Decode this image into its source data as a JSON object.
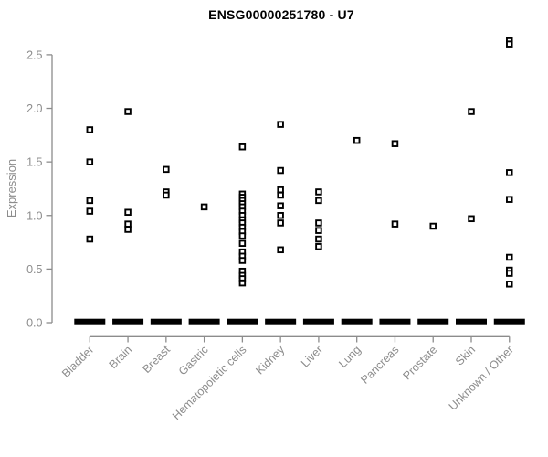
{
  "chart_data": {
    "type": "scatter",
    "title": "ENSG00000251780 - U7",
    "xlabel": "",
    "ylabel": "Expression",
    "ylim": [
      0,
      2.5
    ],
    "yticks": [
      0.0,
      0.5,
      1.0,
      1.5,
      2.0,
      2.5
    ],
    "ytick_labels": [
      "0.0",
      "0.5",
      "1.0",
      "1.5",
      "2.0",
      "2.5"
    ],
    "grid": "off",
    "legend": "none",
    "marker": "open-square",
    "categories": [
      "Bladder",
      "Brain",
      "Breast",
      "Gastric",
      "Hematopoietic cells",
      "Kidney",
      "Liver",
      "Lung",
      "Pancreas",
      "Prostate",
      "Skin",
      "Unknown / Other"
    ],
    "zero_cluster_note": "Every category shows a dense horizontal cluster of many overlapping points at expression 0, appearing as a thick black dash",
    "series": [
      {
        "category": "Bladder",
        "values": [
          1.8,
          1.5,
          1.14,
          1.04,
          0.78
        ],
        "zero_cluster": true
      },
      {
        "category": "Brain",
        "values": [
          1.97,
          1.03,
          0.92,
          0.87
        ],
        "zero_cluster": true
      },
      {
        "category": "Breast",
        "values": [
          1.43,
          1.22,
          1.19
        ],
        "zero_cluster": true
      },
      {
        "category": "Gastric",
        "values": [
          1.08
        ],
        "zero_cluster": true
      },
      {
        "category": "Hematopoietic cells",
        "values": [
          1.64,
          1.2,
          1.17,
          1.14,
          1.11,
          1.08,
          1.04,
          1.0,
          0.96,
          0.93,
          0.89,
          0.85,
          0.81,
          0.74,
          0.66,
          0.62,
          0.58,
          0.48,
          0.44,
          0.41,
          0.37
        ],
        "zero_cluster": true
      },
      {
        "category": "Kidney",
        "values": [
          1.85,
          1.42,
          1.24,
          1.19,
          1.09,
          1.0,
          0.93,
          0.68
        ],
        "zero_cluster": true
      },
      {
        "category": "Liver",
        "values": [
          1.22,
          1.14,
          0.93,
          0.86,
          0.78,
          0.71
        ],
        "zero_cluster": true
      },
      {
        "category": "Lung",
        "values": [
          1.7
        ],
        "zero_cluster": true
      },
      {
        "category": "Pancreas",
        "values": [
          1.67,
          0.92
        ],
        "zero_cluster": true
      },
      {
        "category": "Prostate",
        "values": [
          0.9
        ],
        "zero_cluster": true
      },
      {
        "category": "Skin",
        "values": [
          1.97,
          0.97
        ],
        "zero_cluster": true
      },
      {
        "category": "Unknown / Other",
        "values": [
          2.63,
          2.6,
          1.4,
          1.15,
          0.61,
          0.49,
          0.46,
          0.36
        ],
        "zero_cluster": true
      }
    ],
    "colors": {
      "points": "#000000",
      "axis": "#8c8c8c",
      "tick_labels": "#8c8c8c",
      "title": "#000000",
      "background": "#ffffff"
    }
  }
}
